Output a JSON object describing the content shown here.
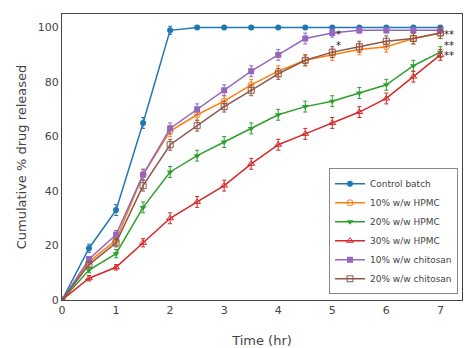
{
  "chart_data": {
    "type": "line",
    "x": [
      0,
      0.5,
      1.0,
      1.5,
      2.0,
      2.5,
      3.0,
      3.5,
      4.0,
      4.5,
      5.0,
      5.5,
      6.0,
      6.5,
      7.0
    ],
    "series": [
      {
        "name": "Control batch",
        "marker": "circle",
        "values": [
          0,
          19,
          33,
          65,
          99,
          100,
          100,
          100,
          100,
          100,
          100,
          100,
          100,
          100,
          100
        ],
        "error": [
          0,
          1.5,
          2,
          2,
          1.5,
          0.5,
          0.5,
          0.5,
          0.5,
          0.5,
          0.5,
          0.5,
          0.5,
          0.5,
          0.5
        ]
      },
      {
        "name": "10% w/w HPMC",
        "marker": "circle-open",
        "values": [
          0,
          14,
          22,
          46,
          62,
          68,
          73,
          79,
          84,
          88,
          90,
          92,
          93,
          96,
          98
        ],
        "error": [
          0,
          1,
          1.5,
          2,
          2,
          2,
          2,
          2,
          2,
          2,
          2,
          2,
          2,
          2,
          2
        ]
      },
      {
        "name": "20% w/w HPMC",
        "marker": "triangle-down",
        "values": [
          0,
          11,
          17,
          34,
          47,
          53,
          58,
          63,
          68,
          71,
          73,
          76,
          79,
          86,
          91
        ],
        "error": [
          0,
          1,
          1.5,
          2,
          2,
          2,
          2,
          2,
          2,
          2,
          2,
          2,
          2,
          2,
          2
        ]
      },
      {
        "name": "30% w/w HPMC",
        "marker": "triangle-up-open",
        "values": [
          0,
          8,
          12,
          21,
          30,
          36,
          42,
          50,
          57,
          61,
          65,
          69,
          74,
          82,
          90
        ],
        "error": [
          0,
          1,
          1,
          1.5,
          2,
          2,
          2,
          2,
          2,
          2,
          2,
          2,
          2,
          2,
          2
        ]
      },
      {
        "name": "10% w/w chitosan",
        "marker": "square",
        "values": [
          0,
          15,
          24,
          46,
          63,
          70,
          77,
          84,
          90,
          96,
          98,
          99,
          99,
          99,
          99
        ],
        "error": [
          0,
          1,
          1.5,
          2,
          2,
          2,
          2,
          2,
          2,
          2,
          1.5,
          1,
          1,
          1,
          1
        ]
      },
      {
        "name": "20% w/w chitosan",
        "marker": "square-open",
        "values": [
          0,
          13,
          21,
          42,
          57,
          64,
          71,
          77,
          83,
          88,
          91,
          93,
          95,
          96,
          98
        ],
        "error": [
          0,
          1,
          1.5,
          2,
          2,
          2,
          2,
          2,
          2,
          2,
          2,
          2,
          2,
          2,
          2
        ]
      }
    ],
    "x_label": "Time (hr)",
    "y_label": "Cumulative % drug released",
    "xlim": [
      0,
      7.4
    ],
    "ylim": [
      0,
      105
    ],
    "xticks": [
      0,
      1,
      2,
      3,
      4,
      5,
      6,
      7
    ],
    "yticks": [
      0,
      20,
      40,
      60,
      80,
      100
    ],
    "grid": false,
    "legend": "lower right",
    "annotations": [
      {
        "text": "*",
        "x": 5.05,
        "y": 100
      },
      {
        "text": "*",
        "x": 5.05,
        "y": 96
      },
      {
        "text": "**",
        "x": 7.05,
        "y": 100
      },
      {
        "text": "**",
        "x": 7.05,
        "y": 96
      },
      {
        "text": "**",
        "x": 7.05,
        "y": 92
      }
    ]
  }
}
